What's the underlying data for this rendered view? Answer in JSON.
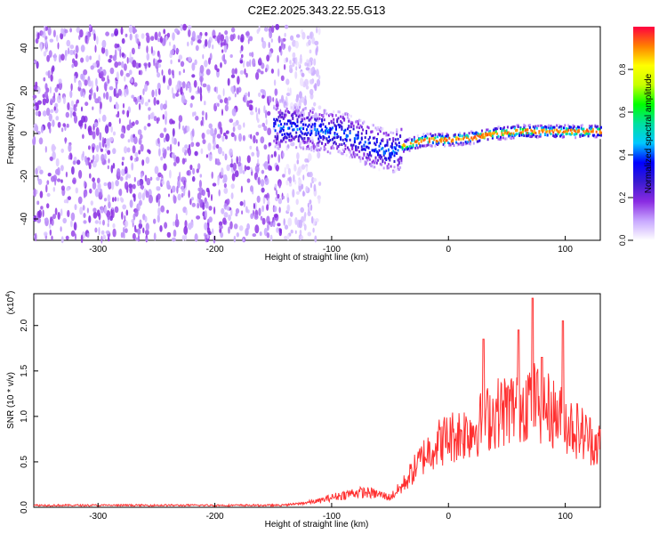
{
  "title": "C2E2.2025.343.22.55.G13",
  "chart_data": [
    {
      "type": "heatmap",
      "title": "C2E2.2025.343.22.55.G13",
      "xlabel": "Height of straight line (km)",
      "ylabel": "Frequency (Hz)",
      "xlim": [
        -355,
        130
      ],
      "ylim": [
        -50,
        50
      ],
      "xticks": [
        -300,
        -200,
        -100,
        0,
        100
      ],
      "yticks": [
        -40,
        -20,
        0,
        20,
        40
      ],
      "colorbar": {
        "label": "Normalized spectral amplitude",
        "range": [
          0,
          1
        ],
        "ticks": [
          "0.0",
          "0.2",
          "0.4",
          "0.6",
          "0.8"
        ],
        "tick_values": [
          0.0,
          0.2,
          0.4,
          0.6,
          0.8
        ],
        "colormap": [
          "#ffffff",
          "#c8a8ff",
          "#8a2be2",
          "#3a1bd0",
          "#0000ff",
          "#00c8ff",
          "#00e0a0",
          "#00ff00",
          "#c8ff00",
          "#ffff00",
          "#ff8000",
          "#ff0040"
        ]
      },
      "ridge": {
        "x": [
          -150,
          -120,
          -90,
          -70,
          -50,
          -40,
          -20,
          0,
          20,
          40,
          60,
          80,
          100,
          130
        ],
        "y": [
          3,
          2,
          0,
          -5,
          -9,
          -6,
          -3,
          -3,
          -2,
          0,
          1,
          1,
          1,
          1
        ]
      },
      "noise_region_x": [
        -355,
        -140
      ]
    },
    {
      "type": "line",
      "xlabel": "Height of straight line (km)",
      "ylabel": "SNR (10 * v/v)",
      "y_multiplier": "(x10",
      "y_multiplier_exp": "4",
      "xlim": [
        -355,
        130
      ],
      "ylim": [
        0,
        2.35
      ],
      "xticks": [
        -300,
        -200,
        -100,
        0,
        100
      ],
      "yticks": [
        "0.0",
        "0.5",
        "1.0",
        "1.5",
        "2.0"
      ],
      "ytick_values": [
        0.0,
        0.5,
        1.0,
        1.5,
        2.0
      ],
      "series": [
        {
          "name": "SNR",
          "color": "#ff3030",
          "x": [
            -355,
            -300,
            -200,
            -150,
            -130,
            -110,
            -100,
            -90,
            -80,
            -70,
            -60,
            -50,
            -40,
            -30,
            -20,
            -10,
            0,
            10,
            20,
            30,
            40,
            50,
            60,
            70,
            80,
            90,
            100,
            110,
            120,
            130
          ],
          "y": [
            0.02,
            0.02,
            0.02,
            0.02,
            0.04,
            0.08,
            0.12,
            0.15,
            0.18,
            0.18,
            0.16,
            0.12,
            0.25,
            0.45,
            0.65,
            0.78,
            0.85,
            0.9,
            0.95,
            1.05,
            1.15,
            1.2,
            1.25,
            1.35,
            1.25,
            1.15,
            1.05,
            0.95,
            0.85,
            0.75
          ]
        }
      ],
      "peaks": {
        "x": [
          30,
          60,
          72,
          80,
          98
        ],
        "y": [
          1.85,
          1.95,
          2.3,
          1.65,
          2.05
        ]
      }
    }
  ]
}
